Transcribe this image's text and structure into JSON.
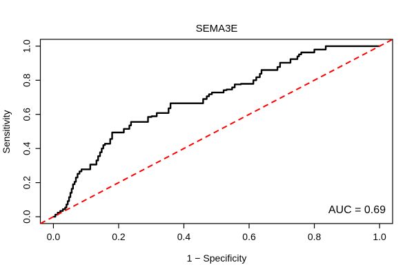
{
  "window": {
    "background_color": "#FFFFFF",
    "text_color": "#000000"
  },
  "figure": {
    "title": "SEMA3E",
    "x_axis_label": "1 − Specificity",
    "y_axis_label": "Sensitivity",
    "auc_annotation": "AUC = 0.69"
  },
  "chart_data": {
    "type": "line",
    "subtype": "roc-curve",
    "title": "SEMA3E",
    "xlabel": "1 − Specificity",
    "ylabel": "Sensitivity",
    "xlim": [
      0,
      1
    ],
    "ylim": [
      0,
      1
    ],
    "grid": false,
    "legend": null,
    "x_ticks": [
      "0.0",
      "0.2",
      "0.4",
      "0.6",
      "0.8",
      "1.0"
    ],
    "y_ticks": [
      "0.0",
      "0.2",
      "0.4",
      "0.6",
      "0.8",
      "1.0"
    ],
    "auc": 0.69,
    "annotations": [
      {
        "text": "AUC = 0.69",
        "anchor": "bottom-right"
      }
    ],
    "series": [
      {
        "name": "ROC curve",
        "draw": "steps",
        "color": "#000000",
        "line_width": 2.4,
        "dash": null,
        "points": [
          [
            0.0,
            0.0
          ],
          [
            0.006,
            0.0
          ],
          [
            0.006,
            0.012
          ],
          [
            0.013,
            0.012
          ],
          [
            0.013,
            0.024
          ],
          [
            0.021,
            0.024
          ],
          [
            0.021,
            0.034
          ],
          [
            0.029,
            0.034
          ],
          [
            0.029,
            0.044
          ],
          [
            0.036,
            0.044
          ],
          [
            0.036,
            0.054
          ],
          [
            0.04,
            0.054
          ],
          [
            0.04,
            0.072
          ],
          [
            0.044,
            0.072
          ],
          [
            0.044,
            0.092
          ],
          [
            0.048,
            0.092
          ],
          [
            0.048,
            0.115
          ],
          [
            0.052,
            0.115
          ],
          [
            0.052,
            0.14
          ],
          [
            0.056,
            0.14
          ],
          [
            0.056,
            0.164
          ],
          [
            0.06,
            0.164
          ],
          [
            0.06,
            0.19
          ],
          [
            0.065,
            0.19
          ],
          [
            0.065,
            0.205
          ],
          [
            0.069,
            0.205
          ],
          [
            0.069,
            0.23
          ],
          [
            0.074,
            0.23
          ],
          [
            0.074,
            0.252
          ],
          [
            0.08,
            0.252
          ],
          [
            0.08,
            0.266
          ],
          [
            0.086,
            0.266
          ],
          [
            0.086,
            0.278
          ],
          [
            0.113,
            0.278
          ],
          [
            0.113,
            0.306
          ],
          [
            0.132,
            0.306
          ],
          [
            0.132,
            0.33
          ],
          [
            0.137,
            0.33
          ],
          [
            0.137,
            0.355
          ],
          [
            0.143,
            0.355
          ],
          [
            0.143,
            0.378
          ],
          [
            0.148,
            0.378
          ],
          [
            0.148,
            0.4
          ],
          [
            0.153,
            0.4
          ],
          [
            0.153,
            0.42
          ],
          [
            0.158,
            0.42
          ],
          [
            0.158,
            0.428
          ],
          [
            0.174,
            0.428
          ],
          [
            0.174,
            0.456
          ],
          [
            0.18,
            0.456
          ],
          [
            0.18,
            0.494
          ],
          [
            0.216,
            0.494
          ],
          [
            0.216,
            0.515
          ],
          [
            0.233,
            0.515
          ],
          [
            0.233,
            0.535
          ],
          [
            0.238,
            0.535
          ],
          [
            0.238,
            0.556
          ],
          [
            0.29,
            0.556
          ],
          [
            0.29,
            0.585
          ],
          [
            0.301,
            0.585
          ],
          [
            0.301,
            0.589
          ],
          [
            0.317,
            0.589
          ],
          [
            0.317,
            0.608
          ],
          [
            0.353,
            0.608
          ],
          [
            0.353,
            0.636
          ],
          [
            0.359,
            0.636
          ],
          [
            0.359,
            0.665
          ],
          [
            0.459,
            0.665
          ],
          [
            0.459,
            0.69
          ],
          [
            0.47,
            0.69
          ],
          [
            0.47,
            0.706
          ],
          [
            0.477,
            0.706
          ],
          [
            0.477,
            0.718
          ],
          [
            0.486,
            0.718
          ],
          [
            0.486,
            0.728
          ],
          [
            0.522,
            0.728
          ],
          [
            0.522,
            0.742
          ],
          [
            0.531,
            0.742
          ],
          [
            0.531,
            0.746
          ],
          [
            0.548,
            0.746
          ],
          [
            0.548,
            0.758
          ],
          [
            0.556,
            0.758
          ],
          [
            0.556,
            0.776
          ],
          [
            0.575,
            0.776
          ],
          [
            0.575,
            0.779
          ],
          [
            0.613,
            0.779
          ],
          [
            0.613,
            0.8
          ],
          [
            0.622,
            0.8
          ],
          [
            0.622,
            0.818
          ],
          [
            0.633,
            0.818
          ],
          [
            0.633,
            0.838
          ],
          [
            0.638,
            0.838
          ],
          [
            0.638,
            0.86
          ],
          [
            0.687,
            0.86
          ],
          [
            0.687,
            0.878
          ],
          [
            0.695,
            0.878
          ],
          [
            0.695,
            0.903
          ],
          [
            0.727,
            0.903
          ],
          [
            0.727,
            0.924
          ],
          [
            0.748,
            0.924
          ],
          [
            0.748,
            0.94
          ],
          [
            0.753,
            0.94
          ],
          [
            0.753,
            0.952
          ],
          [
            0.76,
            0.952
          ],
          [
            0.76,
            0.963
          ],
          [
            0.8,
            0.963
          ],
          [
            0.8,
            0.98
          ],
          [
            0.835,
            0.98
          ],
          [
            0.835,
            1.0
          ],
          [
            1.0,
            1.0
          ]
        ]
      },
      {
        "name": "chance-diagonal",
        "draw": "abline",
        "color": "#FF0000",
        "line_width": 2,
        "dash": [
          8,
          5.5
        ],
        "points": [
          [
            0,
            0
          ],
          [
            1,
            1
          ]
        ]
      }
    ]
  }
}
